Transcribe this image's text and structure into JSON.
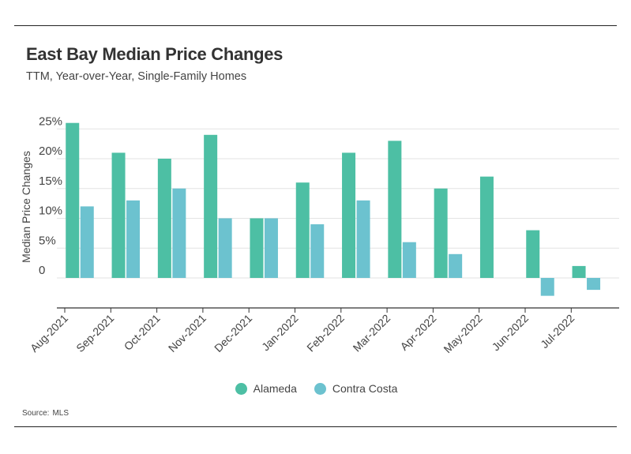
{
  "header": {
    "title": "East Bay Median Price Changes",
    "subtitle": "TTM, Year-over-Year, Single-Family Homes"
  },
  "footer": {
    "source_label": "Source:",
    "source_value": "MLS"
  },
  "colors": {
    "alameda": "#4dbfa4",
    "contra_costa": "#6cc2cf",
    "grid": "#e3e3e3",
    "axis": "#333333"
  },
  "chart_data": {
    "type": "bar",
    "title": "East Bay Median Price Changes",
    "subtitle": "TTM, Year-over-Year, Single-Family Homes",
    "xlabel": "",
    "ylabel": "Median Price Changes",
    "categories": [
      "Aug-2021",
      "Sep-2021",
      "Oct-2021",
      "Nov-2021",
      "Dec-2021",
      "Jan-2022",
      "Feb-2022",
      "Mar-2022",
      "Apr-2022",
      "May-2022",
      "Jun-2022",
      "Jul-2022"
    ],
    "series": [
      {
        "name": "Alameda",
        "values": [
          26,
          21,
          20,
          24,
          10,
          16,
          21,
          23,
          15,
          17,
          8,
          2
        ]
      },
      {
        "name": "Contra Costa",
        "values": [
          12,
          13,
          15,
          10,
          10,
          9,
          13,
          6,
          4,
          null,
          -3,
          -2
        ]
      }
    ],
    "y_ticks": [
      {
        "value": 25,
        "label": "25%"
      },
      {
        "value": 20,
        "label": "20%"
      },
      {
        "value": 15,
        "label": "15%"
      },
      {
        "value": 10,
        "label": "10%"
      },
      {
        "value": 5,
        "label": "5%"
      },
      {
        "value": 0,
        "label": "0"
      }
    ],
    "ylim": [
      -5,
      25
    ],
    "grid": true,
    "legend_position": "bottom-center"
  }
}
